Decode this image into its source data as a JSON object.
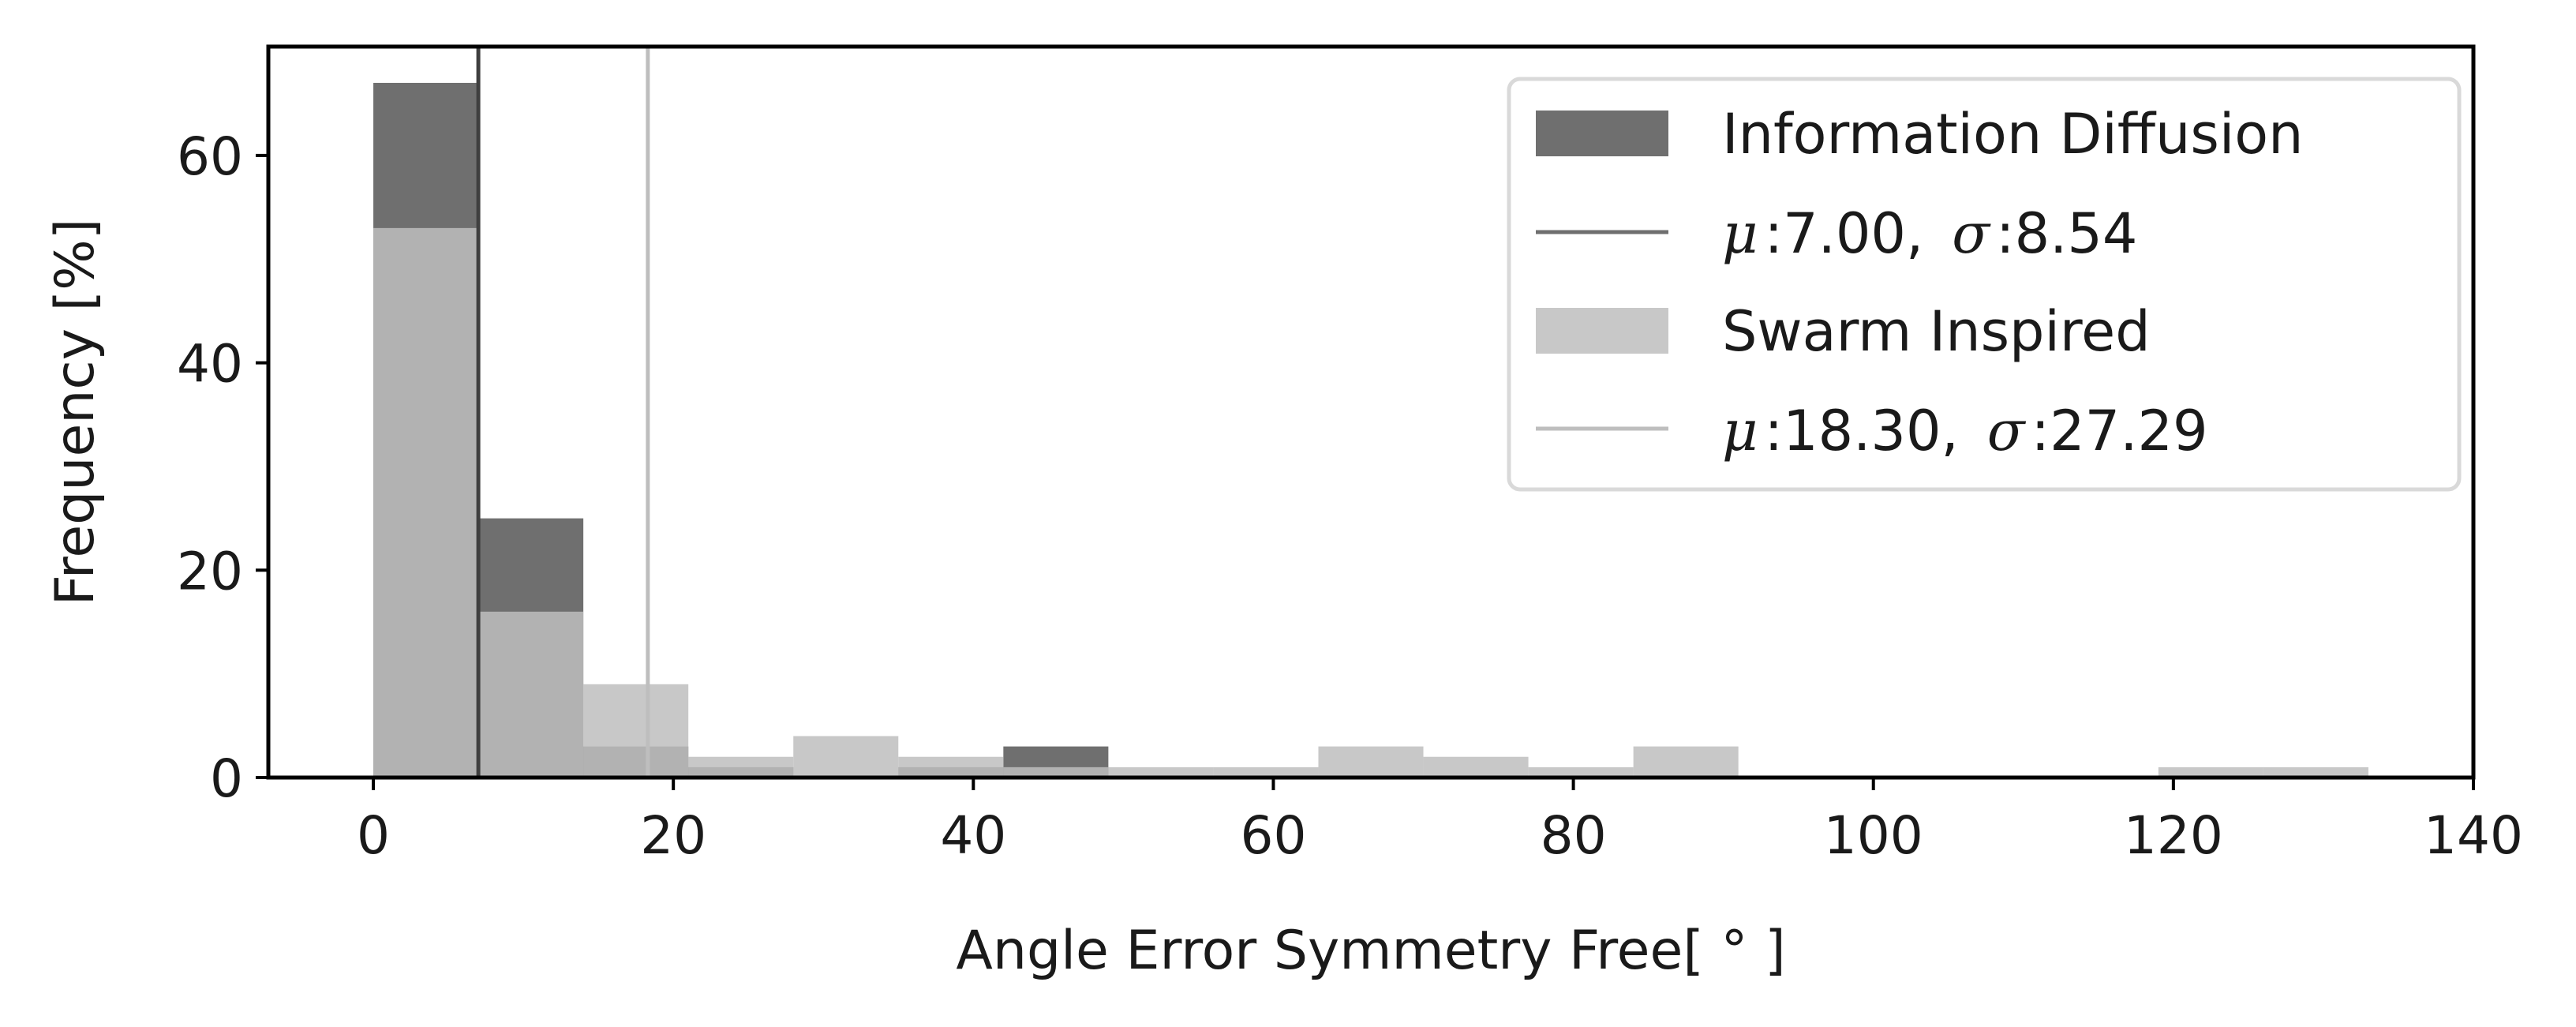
{
  "chart_data": {
    "type": "bar",
    "title": "",
    "xlabel": "Angle Error Symmetry Free[ ° ]",
    "ylabel": "Frequency [%]",
    "xlim": [
      -7,
      140
    ],
    "ylim": [
      0,
      70.5
    ],
    "xticks": [
      0,
      20,
      40,
      60,
      80,
      100,
      120,
      140
    ],
    "yticks": [
      0,
      20,
      40,
      60
    ],
    "grid": false,
    "legend_position": "top-right",
    "bin_width": 7,
    "series": [
      {
        "name": "Information Diffusion",
        "color": "#6f6f6f",
        "alpha": 1.0,
        "bin_starts": [
          0,
          7,
          14,
          21,
          28,
          35,
          42,
          49,
          56,
          63,
          70,
          77,
          84,
          91,
          98,
          105,
          112,
          119,
          126
        ],
        "values": [
          67,
          25,
          3,
          1,
          0,
          1,
          3,
          0,
          0,
          0,
          0,
          0,
          0,
          0,
          0,
          0,
          0,
          0,
          0
        ],
        "mean_line": {
          "value": 7.0,
          "label_mu": "μ",
          "mu_value": "7.00,",
          "label_sigma": "σ",
          "sigma_value": "8.54",
          "color": "#3f3f3f",
          "legend_color": "#6f6f6f"
        }
      },
      {
        "name": "Swarm Inspired",
        "color": "#bebebe",
        "alpha": 0.85,
        "bin_starts": [
          0,
          7,
          14,
          21,
          28,
          35,
          42,
          49,
          56,
          63,
          70,
          77,
          84,
          91,
          98,
          105,
          112,
          119,
          126
        ],
        "values": [
          53,
          16,
          9,
          2,
          4,
          2,
          1,
          1,
          1,
          3,
          2,
          1,
          3,
          0,
          0,
          0,
          0,
          1,
          1
        ],
        "mean_line": {
          "value": 18.3,
          "label_mu": "μ",
          "mu_value": "18.30,",
          "label_sigma": "σ",
          "sigma_value": "27.29",
          "color": "#bebebe",
          "legend_color": "#bebebe"
        }
      }
    ]
  }
}
